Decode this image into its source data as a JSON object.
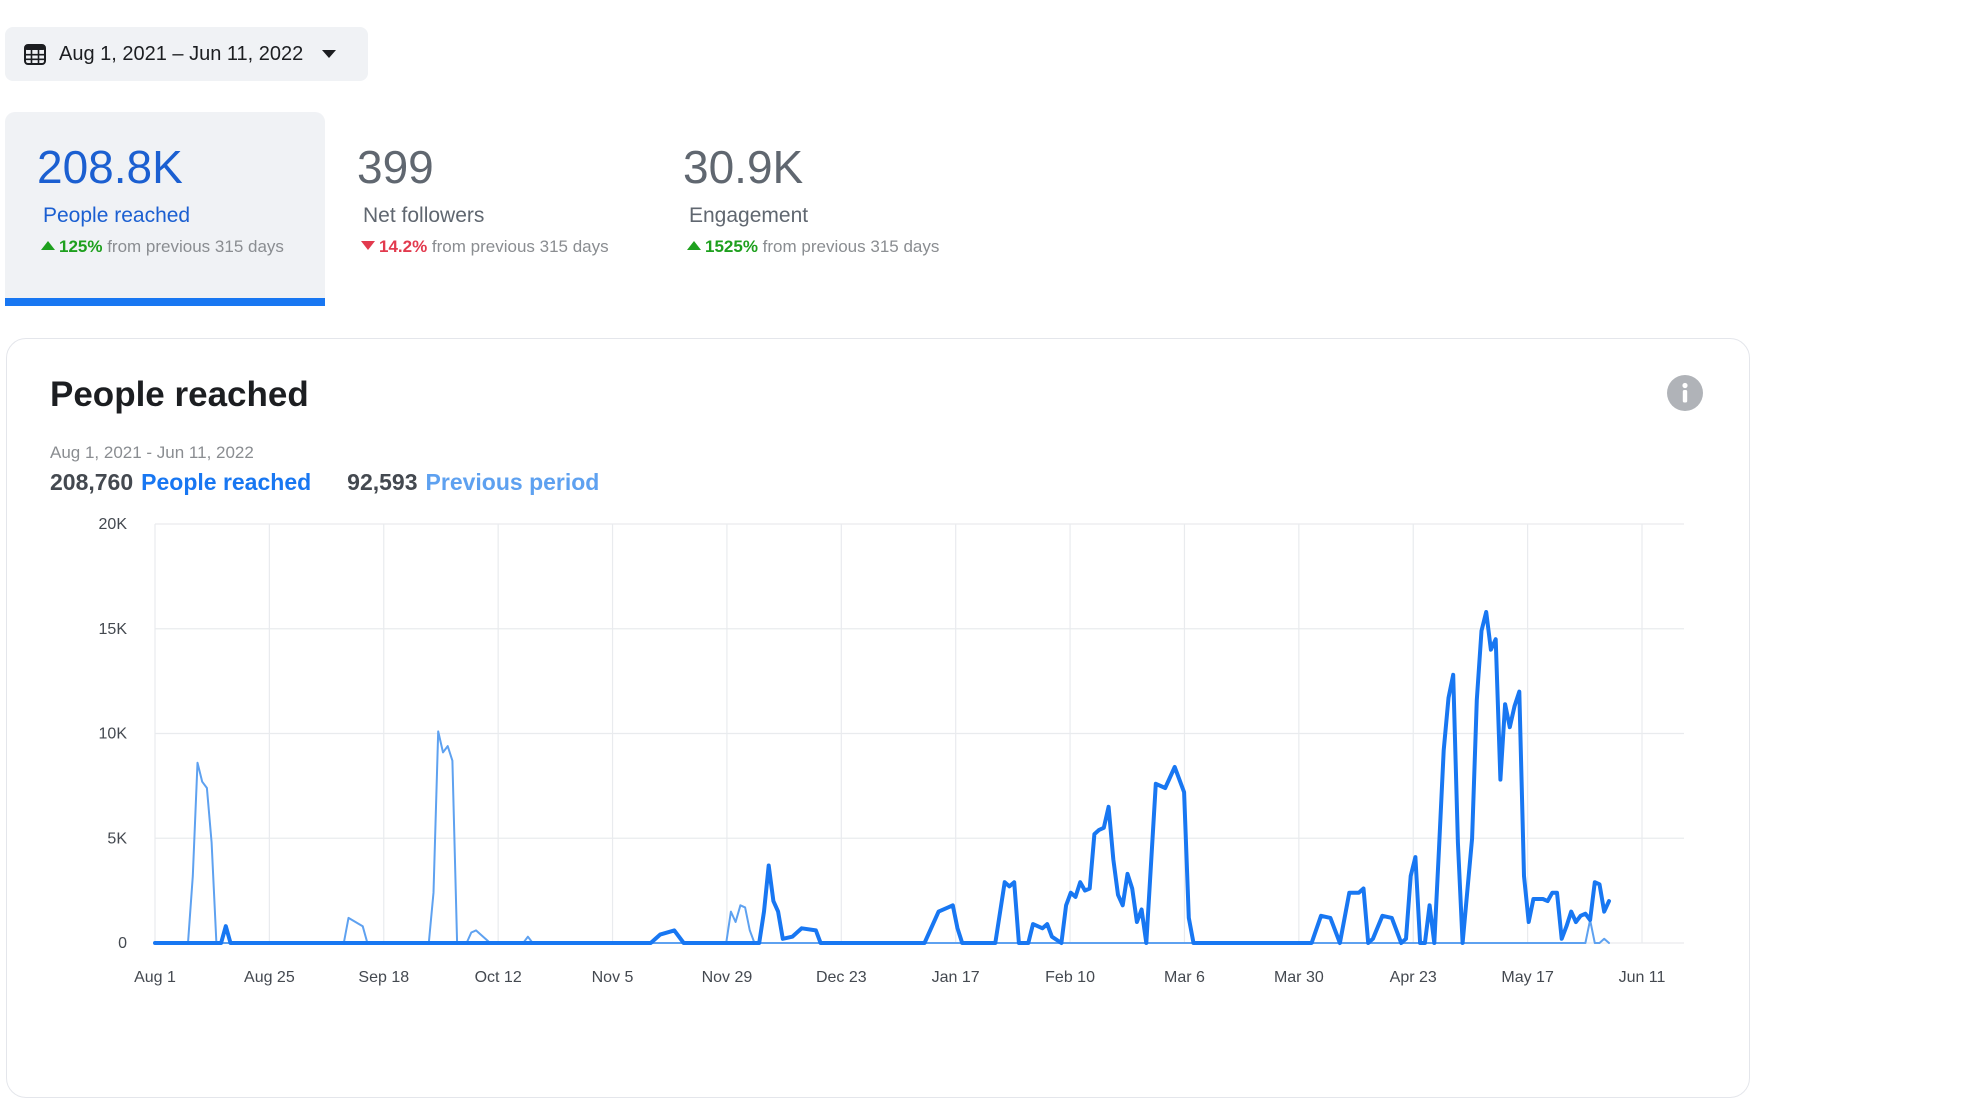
{
  "date_picker": {
    "label": "Aug 1, 2021 – Jun 11, 2022",
    "icon": "calendar-icon",
    "caret_icon": "caret-down-icon"
  },
  "stats": [
    {
      "value": "208.8K",
      "label": "People reached",
      "direction": "up",
      "percent": "125%",
      "suffix": " from previous 315 days"
    },
    {
      "value": "399",
      "label": "Net followers",
      "direction": "down",
      "percent": "14.2%",
      "suffix": " from previous 315 days"
    },
    {
      "value": "30.9K",
      "label": "Engagement",
      "direction": "up",
      "percent": "1525%",
      "suffix": " from previous 315 days"
    }
  ],
  "panel": {
    "title": "People reached",
    "date_range": "Aug 1, 2021 - Jun 11, 2022",
    "current_total": "208,760",
    "current_label": "People reached",
    "previous_total": "92,593",
    "previous_label": "Previous period",
    "info_icon": "info-icon"
  },
  "colors": {
    "accent": "#1877f2",
    "previous": "#5ea1f0",
    "up": "#1ea01e",
    "down": "#e23a4e"
  },
  "chart_data": {
    "type": "line",
    "x_tick_labels": [
      "Aug 1",
      "Aug 25",
      "Sep 18",
      "Oct 12",
      "Nov 5",
      "Nov 29",
      "Dec 23",
      "Jan 17",
      "Feb 10",
      "Mar 6",
      "Mar 30",
      "Apr 23",
      "May 17",
      "Jun 11"
    ],
    "y_tick_labels": [
      "0",
      "5K",
      "10K",
      "15K",
      "20K"
    ],
    "ylim": [
      0,
      20000
    ],
    "xlim": [
      0,
      315
    ],
    "grid": true,
    "series": [
      {
        "name": "People reached",
        "color": "#1877f2",
        "points": [
          [
            0,
            0
          ],
          [
            14,
            0
          ],
          [
            15,
            800
          ],
          [
            16,
            0
          ],
          [
            105,
            0
          ],
          [
            107,
            400
          ],
          [
            110,
            600
          ],
          [
            112,
            0
          ],
          [
            128,
            0
          ],
          [
            129,
            1500
          ],
          [
            130,
            3700
          ],
          [
            131,
            2000
          ],
          [
            132,
            1500
          ],
          [
            133,
            200
          ],
          [
            135,
            300
          ],
          [
            137,
            700
          ],
          [
            140,
            600
          ],
          [
            141,
            0
          ],
          [
            163,
            0
          ],
          [
            166,
            1500
          ],
          [
            168,
            1700
          ],
          [
            169,
            1800
          ],
          [
            170,
            700
          ],
          [
            171,
            0
          ],
          [
            178,
            0
          ],
          [
            180,
            2900
          ],
          [
            181,
            2700
          ],
          [
            182,
            2900
          ],
          [
            183,
            0
          ],
          [
            185,
            0
          ],
          [
            186,
            900
          ],
          [
            188,
            700
          ],
          [
            189,
            900
          ],
          [
            190,
            300
          ],
          [
            192,
            0
          ],
          [
            193,
            1800
          ],
          [
            194,
            2400
          ],
          [
            195,
            2200
          ],
          [
            196,
            2900
          ],
          [
            197,
            2500
          ],
          [
            198,
            2600
          ],
          [
            199,
            5200
          ],
          [
            200,
            5400
          ],
          [
            201,
            5500
          ],
          [
            202,
            6500
          ],
          [
            203,
            4000
          ],
          [
            204,
            2300
          ],
          [
            205,
            1800
          ],
          [
            206,
            3300
          ],
          [
            207,
            2600
          ],
          [
            208,
            1000
          ],
          [
            209,
            1600
          ],
          [
            210,
            0
          ],
          [
            212,
            7600
          ],
          [
            214,
            7400
          ],
          [
            216,
            8400
          ],
          [
            218,
            7200
          ],
          [
            219,
            1200
          ],
          [
            220,
            0
          ],
          [
            245,
            0
          ],
          [
            247,
            1300
          ],
          [
            249,
            1200
          ],
          [
            251,
            0
          ],
          [
            253,
            2400
          ],
          [
            255,
            2400
          ],
          [
            256,
            2600
          ],
          [
            257,
            0
          ],
          [
            258,
            200
          ],
          [
            260,
            1300
          ],
          [
            262,
            1200
          ],
          [
            264,
            0
          ],
          [
            265,
            200
          ],
          [
            266,
            3200
          ],
          [
            267,
            4100
          ],
          [
            268,
            0
          ],
          [
            269,
            0
          ],
          [
            270,
            1800
          ],
          [
            271,
            0
          ],
          [
            272,
            4500
          ],
          [
            273,
            9200
          ],
          [
            274,
            11700
          ],
          [
            275,
            12800
          ],
          [
            276,
            4800
          ],
          [
            277,
            0
          ],
          [
            279,
            5000
          ],
          [
            280,
            11600
          ],
          [
            281,
            14900
          ],
          [
            282,
            15800
          ],
          [
            283,
            14000
          ],
          [
            284,
            14500
          ],
          [
            285,
            7800
          ],
          [
            286,
            11400
          ],
          [
            287,
            10300
          ],
          [
            288,
            11300
          ],
          [
            289,
            12000
          ],
          [
            290,
            3200
          ],
          [
            291,
            1000
          ],
          [
            292,
            2100
          ],
          [
            294,
            2100
          ],
          [
            295,
            2000
          ],
          [
            296,
            2400
          ],
          [
            297,
            2400
          ],
          [
            298,
            200
          ],
          [
            299,
            800
          ],
          [
            300,
            1500
          ],
          [
            301,
            1000
          ],
          [
            302,
            1300
          ],
          [
            303,
            1400
          ],
          [
            304,
            1100
          ],
          [
            305,
            2900
          ],
          [
            306,
            2800
          ],
          [
            307,
            1500
          ],
          [
            308,
            2000
          ]
        ]
      },
      {
        "name": "Previous period",
        "color": "#5ea1f0",
        "points": [
          [
            0,
            0
          ],
          [
            7,
            0
          ],
          [
            8,
            3200
          ],
          [
            9,
            8600
          ],
          [
            10,
            7700
          ],
          [
            11,
            7400
          ],
          [
            12,
            4800
          ],
          [
            13,
            0
          ],
          [
            40,
            0
          ],
          [
            41,
            1200
          ],
          [
            44,
            800
          ],
          [
            45,
            0
          ],
          [
            58,
            0
          ],
          [
            59,
            2400
          ],
          [
            60,
            10100
          ],
          [
            61,
            9100
          ],
          [
            62,
            9400
          ],
          [
            63,
            8700
          ],
          [
            64,
            0
          ],
          [
            66,
            0
          ],
          [
            67,
            500
          ],
          [
            68,
            600
          ],
          [
            70,
            200
          ],
          [
            71,
            0
          ],
          [
            78,
            0
          ],
          [
            79,
            300
          ],
          [
            80,
            0
          ],
          [
            121,
            0
          ],
          [
            122,
            1500
          ],
          [
            123,
            1000
          ],
          [
            124,
            1800
          ],
          [
            125,
            1700
          ],
          [
            126,
            600
          ],
          [
            127,
            0
          ],
          [
            303,
            0
          ],
          [
            304,
            1100
          ],
          [
            305,
            0
          ],
          [
            306,
            0
          ],
          [
            307,
            200
          ],
          [
            308,
            0
          ]
        ]
      }
    ]
  }
}
